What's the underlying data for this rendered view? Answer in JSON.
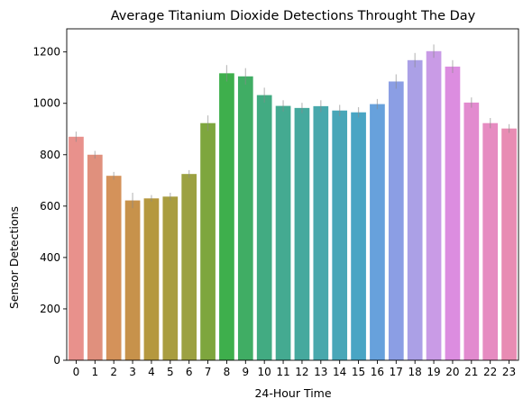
{
  "chart_data": {
    "type": "bar",
    "title": "Average Titanium Dioxide Detections Throught The Day",
    "xlabel": "24-Hour Time",
    "ylabel": "Sensor Detections",
    "ylim": [
      0,
      1290
    ],
    "yticks": [
      0,
      200,
      400,
      600,
      800,
      1000,
      1200
    ],
    "grid": false,
    "categories": [
      "0",
      "1",
      "2",
      "3",
      "4",
      "5",
      "6",
      "7",
      "8",
      "9",
      "10",
      "11",
      "12",
      "13",
      "14",
      "15",
      "16",
      "17",
      "18",
      "19",
      "20",
      "21",
      "22",
      "23"
    ],
    "values": [
      870,
      800,
      718,
      622,
      630,
      637,
      725,
      923,
      1117,
      1105,
      1032,
      990,
      982,
      989,
      972,
      965,
      997,
      1085,
      1168,
      1203,
      1143,
      1003,
      923,
      902
    ],
    "error_low": [
      850,
      785,
      703,
      592,
      618,
      622,
      710,
      893,
      1085,
      1073,
      1003,
      968,
      962,
      966,
      950,
      945,
      977,
      1057,
      1140,
      1177,
      1118,
      983,
      903,
      885
    ],
    "error_high": [
      890,
      815,
      733,
      652,
      643,
      652,
      740,
      953,
      1149,
      1137,
      1061,
      1012,
      1002,
      1012,
      994,
      985,
      1017,
      1113,
      1196,
      1229,
      1168,
      1023,
      943,
      919
    ],
    "colors": [
      "#e8918c",
      "#e0907d",
      "#d4925a",
      "#c7924b",
      "#b5983e",
      "#a99d40",
      "#9ca142",
      "#7ea63e",
      "#3eaf4c",
      "#40ad64",
      "#42ab82",
      "#44aa91",
      "#46a99e",
      "#48a8ac",
      "#48a7b8",
      "#49a5c4",
      "#67a1dc",
      "#8b9ee4",
      "#aba0e6",
      "#c99be6",
      "#dc8de0",
      "#e28bcf",
      "#e68cc1",
      "#e88cb3"
    ]
  }
}
